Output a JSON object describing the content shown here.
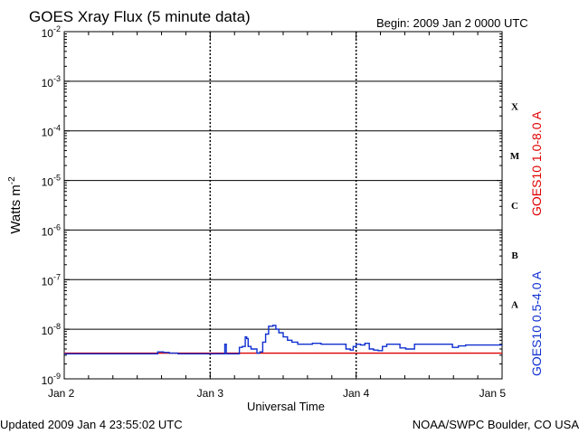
{
  "chart_data": {
    "type": "line",
    "title": "GOES Xray Flux (5 minute data)",
    "begin_label": "Begin:  2009 Jan 2 0000 UTC",
    "ylabel": "Watts m",
    "ylabel_superscript": "-2",
    "xlabel": "Universal Time",
    "footer_left": "Updated 2009 Jan  4 23:55:02 UTC",
    "footer_right": "NOAA/SWPC Boulder, CO USA",
    "y_scale": "log",
    "ylim": [
      1e-09,
      0.01
    ],
    "y_ticks": [
      {
        "base": "10",
        "exp": "-9"
      },
      {
        "base": "10",
        "exp": "-8"
      },
      {
        "base": "10",
        "exp": "-7"
      },
      {
        "base": "10",
        "exp": "-6"
      },
      {
        "base": "10",
        "exp": "-5"
      },
      {
        "base": "10",
        "exp": "-4"
      },
      {
        "base": "10",
        "exp": "-3"
      },
      {
        "base": "10",
        "exp": "-2"
      }
    ],
    "x_ticks": [
      "Jan 2",
      "Jan 3",
      "Jan 4",
      "Jan 5"
    ],
    "xlim_days": [
      0,
      3
    ],
    "flare_classes": [
      "A",
      "B",
      "C",
      "M",
      "X"
    ],
    "grid": true,
    "series": [
      {
        "name": "GOES10 1.0-8.0 A",
        "color": "#e00000",
        "points": [
          [
            0,
            3.3e-09
          ],
          [
            3,
            3.3e-09
          ]
        ]
      },
      {
        "name": "GOES10 0.5-4.0 A",
        "color": "#1030d0",
        "points": [
          [
            0.0,
            3.2e-09
          ],
          [
            0.5,
            3.2e-09
          ],
          [
            0.62,
            3.2e-09
          ],
          [
            0.64,
            3.5e-09
          ],
          [
            0.68,
            3.4e-09
          ],
          [
            0.72,
            3.3e-09
          ],
          [
            0.78,
            3.2e-09
          ],
          [
            1.0,
            3.2e-09
          ],
          [
            1.08,
            3.2e-09
          ],
          [
            1.1,
            5e-09
          ],
          [
            1.11,
            3.2e-09
          ],
          [
            1.18,
            3.2e-09
          ],
          [
            1.2,
            4.3e-09
          ],
          [
            1.22,
            4.5e-09
          ],
          [
            1.24,
            7e-09
          ],
          [
            1.25,
            6.5e-09
          ],
          [
            1.26,
            4.5e-09
          ],
          [
            1.28,
            4e-09
          ],
          [
            1.3,
            4e-09
          ],
          [
            1.32,
            3.3e-09
          ],
          [
            1.34,
            3.5e-09
          ],
          [
            1.36,
            5.5e-09
          ],
          [
            1.38,
            8e-09
          ],
          [
            1.4,
            1.15e-08
          ],
          [
            1.43,
            1.2e-08
          ],
          [
            1.45,
            1e-08
          ],
          [
            1.47,
            8.5e-09
          ],
          [
            1.5,
            7e-09
          ],
          [
            1.53,
            6e-09
          ],
          [
            1.56,
            5.5e-09
          ],
          [
            1.6,
            5e-09
          ],
          [
            1.64,
            5e-09
          ],
          [
            1.7,
            5.2e-09
          ],
          [
            1.76,
            5e-09
          ],
          [
            1.82,
            5e-09
          ],
          [
            1.88,
            5e-09
          ],
          [
            1.93,
            4e-09
          ],
          [
            1.96,
            3.8e-09
          ],
          [
            1.98,
            4.5e-09
          ],
          [
            2.0,
            5e-09
          ],
          [
            2.03,
            4.8e-09
          ],
          [
            2.06,
            5.2e-09
          ],
          [
            2.09,
            4e-09
          ],
          [
            2.12,
            3.8e-09
          ],
          [
            2.15,
            3.7e-09
          ],
          [
            2.18,
            4.5e-09
          ],
          [
            2.21,
            5e-09
          ],
          [
            2.25,
            5e-09
          ],
          [
            2.3,
            4.2e-09
          ],
          [
            2.34,
            4e-09
          ],
          [
            2.4,
            5e-09
          ],
          [
            2.46,
            5e-09
          ],
          [
            2.52,
            5e-09
          ],
          [
            2.6,
            5e-09
          ],
          [
            2.66,
            4.3e-09
          ],
          [
            2.7,
            4.6e-09
          ],
          [
            2.75,
            4.8e-09
          ],
          [
            2.85,
            4.8e-09
          ],
          [
            2.95,
            4.8e-09
          ],
          [
            3.0,
            4.8e-09
          ]
        ]
      }
    ]
  }
}
